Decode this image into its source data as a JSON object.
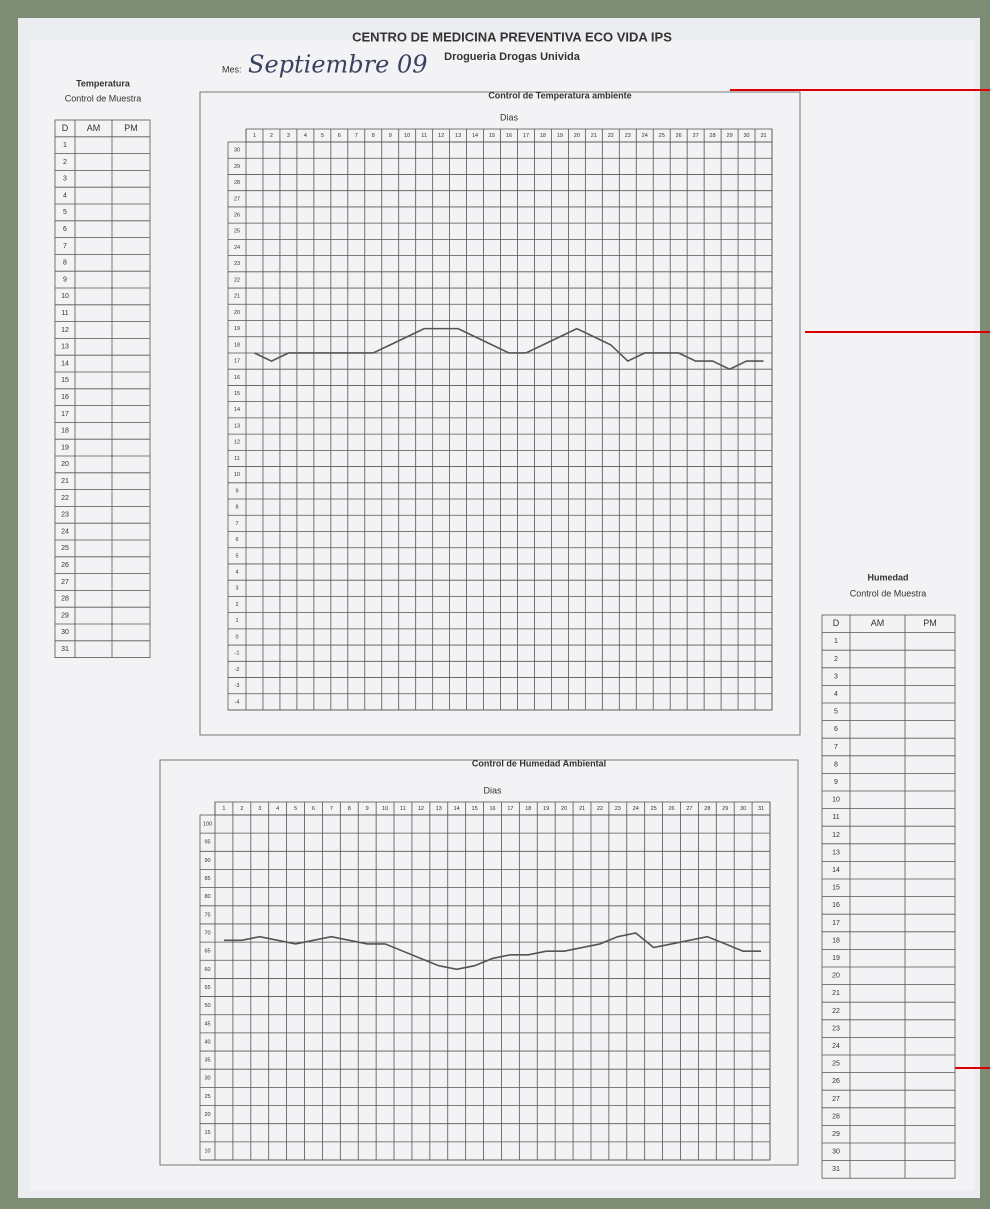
{
  "header": {
    "title": "CENTRO DE MEDICINA PREVENTIVA ECO VIDA IPS",
    "subtitle": "Drogueria Drogas Univida",
    "month_label": "Mes:",
    "month_value": "Septiembre 09"
  },
  "days": [
    1,
    2,
    3,
    4,
    5,
    6,
    7,
    8,
    9,
    10,
    11,
    12,
    13,
    14,
    15,
    16,
    17,
    18,
    19,
    20,
    21,
    22,
    23,
    24,
    25,
    26,
    27,
    28,
    29,
    30,
    31
  ],
  "temp_table": {
    "title": "Temperatura",
    "subtitle": "Control de Muestra",
    "columns": [
      "D",
      "AM",
      "PM"
    ]
  },
  "humidity_table": {
    "title": "Humedad",
    "subtitle": "Control de Muestra",
    "columns": [
      "D",
      "AM",
      "PM"
    ]
  },
  "temperature_chart": {
    "type": "line",
    "title": "Control de Temperatura ambiente",
    "x_label": "Dias",
    "ylim": [
      -4,
      30
    ],
    "yticks": [
      30,
      29,
      28,
      27,
      26,
      25,
      24,
      23,
      22,
      21,
      20,
      19,
      18,
      17,
      16,
      15,
      14,
      13,
      12,
      11,
      10,
      9,
      8,
      7,
      6,
      5,
      4,
      3,
      2,
      1,
      0,
      -1,
      -2,
      -3,
      -4
    ],
    "values": [
      17.5,
      17,
      17.5,
      17.5,
      17.5,
      17.5,
      17.5,
      17.5,
      18,
      18.5,
      19,
      19,
      19,
      18.5,
      18,
      17.5,
      17.5,
      18,
      18.5,
      19,
      18.5,
      18,
      17,
      17.5,
      17.5,
      17.5,
      17,
      17,
      16.5,
      17,
      17
    ],
    "color": "#555"
  },
  "humidity_chart": {
    "type": "line",
    "title": "Control de Humedad Ambiental",
    "x_label": "Dias",
    "ylim": [
      10,
      100
    ],
    "yticks": [
      100,
      95,
      90,
      85,
      80,
      75,
      70,
      65,
      60,
      55,
      50,
      45,
      40,
      35,
      30,
      25,
      20,
      15,
      10
    ],
    "values": [
      68,
      68,
      69,
      68,
      67,
      68,
      69,
      68,
      67,
      67,
      65,
      63,
      61,
      60,
      61,
      63,
      64,
      64,
      65,
      65,
      66,
      67,
      69,
      70,
      66,
      67,
      68,
      69,
      67,
      65,
      65
    ],
    "color": "#555"
  }
}
